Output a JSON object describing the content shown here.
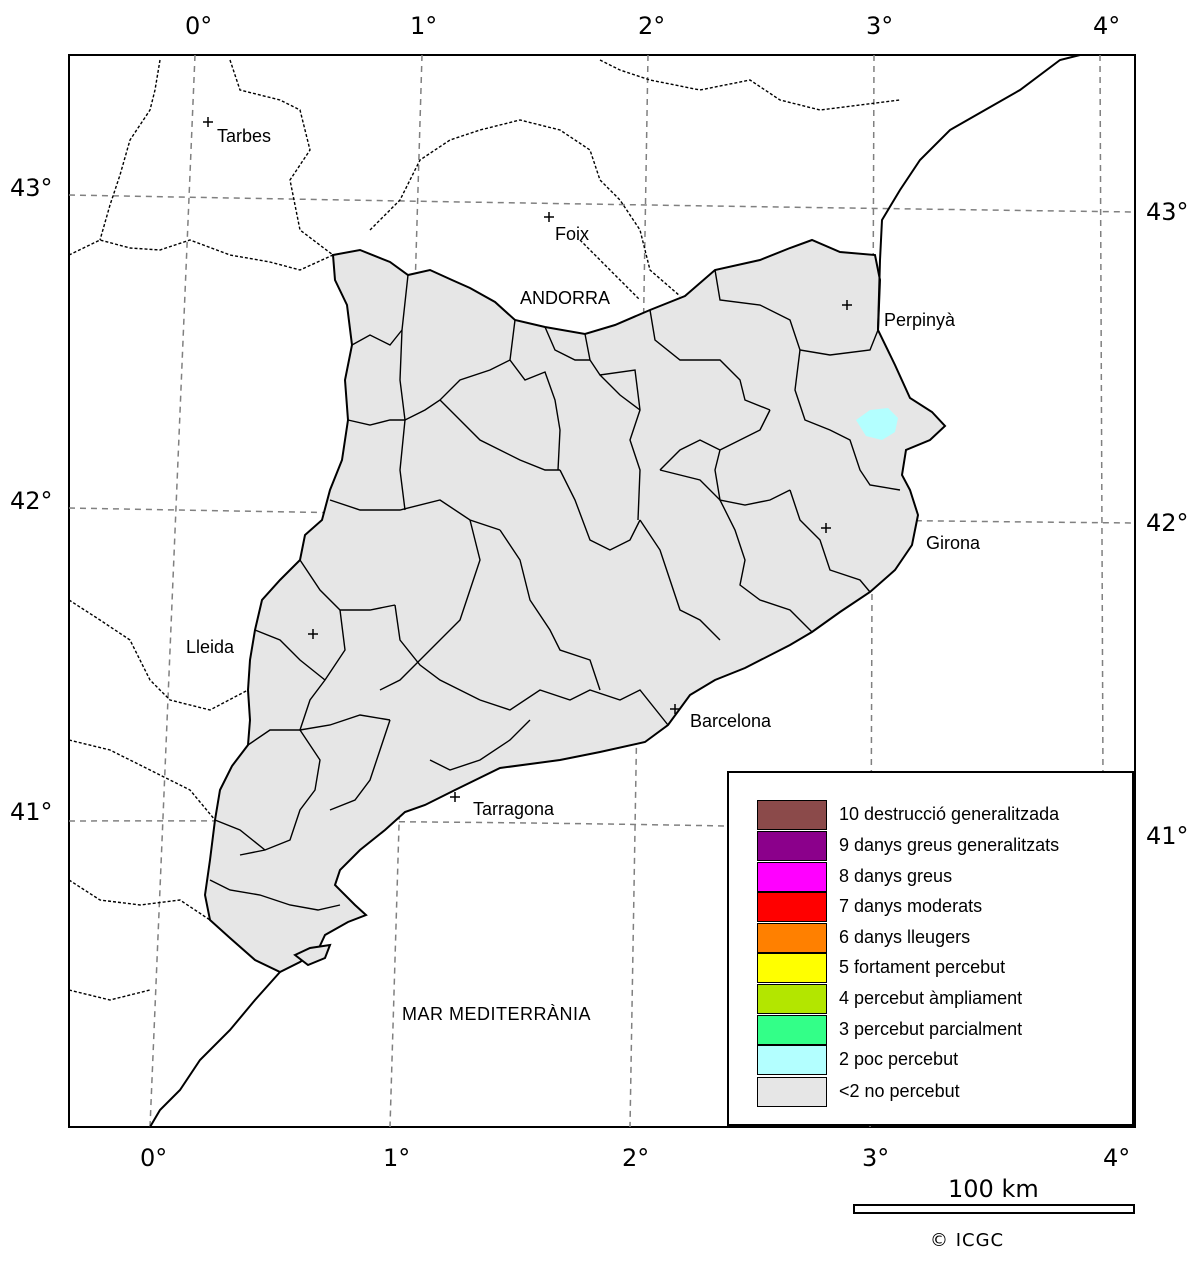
{
  "map": {
    "top_longitude_labels": [
      "0°",
      "1°",
      "2°",
      "3°",
      "4°"
    ],
    "bottom_longitude_labels": [
      "0°",
      "1°",
      "2°",
      "3°",
      "4°"
    ],
    "left_latitude_labels": [
      "43°",
      "42°",
      "41°"
    ],
    "right_latitude_labels": [
      "43°",
      "42°",
      "41°"
    ],
    "cities": {
      "tarbes": "Tarbes",
      "foix": "Foix",
      "andorra": "ANDORRA",
      "perpinya": "Perpinyà",
      "girona": "Girona",
      "lleida": "Lleida",
      "barcelona": "Barcelona",
      "tarragona": "Tarragona"
    },
    "sea_label": "MAR MEDITERRÀNIA",
    "colors": {
      "land_region": "#e6e6e6",
      "outline": "#000000",
      "graticule": "#808080"
    }
  },
  "legend": {
    "items": [
      {
        "label": "10 destrucció generalitzada",
        "color": "#8b4a4a"
      },
      {
        "label": "9 danys greus generalitzats",
        "color": "#8b008b"
      },
      {
        "label": "8 danys greus",
        "color": "#ff00ff"
      },
      {
        "label": "7 danys moderats",
        "color": "#ff0000"
      },
      {
        "label": "6 danys lleugers",
        "color": "#ff8000"
      },
      {
        "label": "5 fortament percebut",
        "color": "#ffff00"
      },
      {
        "label": "4 percebut àmpliament",
        "color": "#b3e600"
      },
      {
        "label": "3 percebut parcialment",
        "color": "#33ff88"
      },
      {
        "label": "2 poc percebut",
        "color": "#b3ffff"
      },
      {
        "label": "<2 no percebut",
        "color": "#e6e6e6"
      }
    ]
  },
  "scale_bar": {
    "label": "100 km"
  },
  "credit": "© ICGC"
}
